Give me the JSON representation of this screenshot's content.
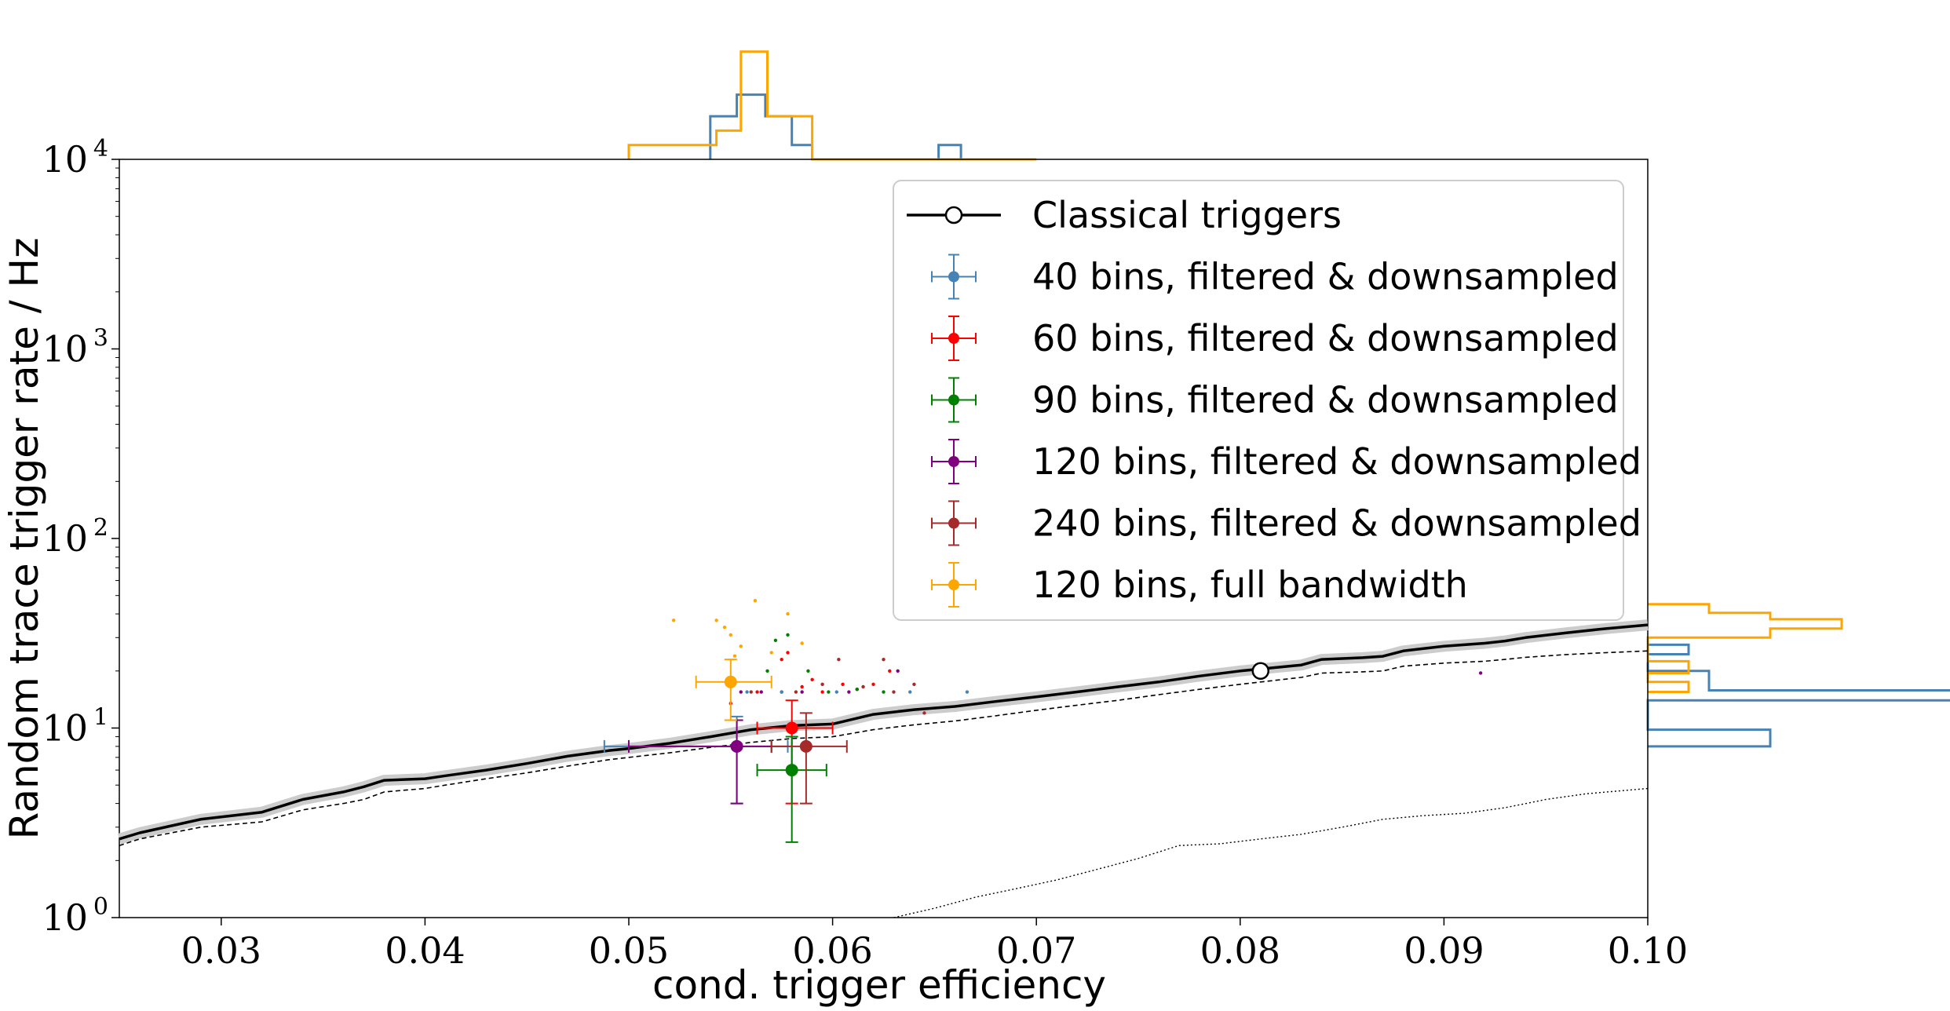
{
  "chart_data": {
    "type": "scatter",
    "title": "",
    "xlabel": "cond. trigger efficiency",
    "ylabel": "Random trace trigger rate / Hz",
    "xlim": [
      0.025,
      0.1
    ],
    "ylim": [
      1,
      10000
    ],
    "yscale": "log",
    "xticks": [
      0.03,
      0.04,
      0.05,
      0.06,
      0.07,
      0.08,
      0.09,
      0.1
    ],
    "xtick_labels": [
      "0.03",
      "0.04",
      "0.05",
      "0.06",
      "0.07",
      "0.08",
      "0.09",
      "0.10"
    ],
    "yticks": [
      1,
      10,
      100,
      1000,
      10000
    ],
    "ytick_base": "10",
    "ytick_exponents": [
      "0",
      "1",
      "2",
      "3",
      "4"
    ],
    "grid": false,
    "legend_position": "top-right",
    "colors": {
      "classical": "#000000",
      "bins40": "#4682b4",
      "bins60": "#ff0000",
      "bins90": "#008000",
      "bins120": "#800080",
      "bins240": "#a52a2a",
      "full": "#ffa500"
    },
    "classical_curve": {
      "name": "Classical triggers",
      "x": [
        0.025,
        0.026,
        0.029,
        0.032,
        0.034,
        0.036,
        0.037,
        0.038,
        0.04,
        0.041,
        0.043,
        0.045,
        0.047,
        0.049,
        0.05,
        0.052,
        0.054,
        0.056,
        0.058,
        0.06,
        0.062,
        0.064,
        0.066,
        0.068,
        0.07,
        0.072,
        0.074,
        0.076,
        0.078,
        0.08,
        0.082,
        0.083,
        0.084,
        0.086,
        0.087,
        0.088,
        0.09,
        0.092,
        0.093,
        0.094,
        0.096,
        0.098,
        0.1
      ],
      "y": [
        2.6,
        2.8,
        3.3,
        3.6,
        4.2,
        4.6,
        4.9,
        5.3,
        5.4,
        5.6,
        6.0,
        6.5,
        7.1,
        7.6,
        7.8,
        8.3,
        9.0,
        9.8,
        10.3,
        10.5,
        11.8,
        12.5,
        13.0,
        13.8,
        14.6,
        15.5,
        16.5,
        17.5,
        18.8,
        20.0,
        21.0,
        21.5,
        23.0,
        23.5,
        23.9,
        25.5,
        27.0,
        28.0,
        28.8,
        30.0,
        31.8,
        33.5,
        35.0
      ],
      "marker": {
        "x": 0.081,
        "y": 20.0
      }
    },
    "dashed_curve": {
      "x": [
        0.025,
        0.026,
        0.029,
        0.032,
        0.034,
        0.036,
        0.037,
        0.038,
        0.04,
        0.041,
        0.043,
        0.045,
        0.047,
        0.049,
        0.05,
        0.052,
        0.054,
        0.056,
        0.058,
        0.06,
        0.062,
        0.064,
        0.066,
        0.068,
        0.07,
        0.072,
        0.074,
        0.076,
        0.078,
        0.08,
        0.082,
        0.083,
        0.084,
        0.086,
        0.087,
        0.088,
        0.09,
        0.092,
        0.093,
        0.094,
        0.096,
        0.098,
        0.1
      ],
      "y": [
        2.4,
        2.6,
        3.0,
        3.2,
        3.7,
        4.0,
        4.2,
        4.6,
        4.8,
        5.0,
        5.4,
        5.8,
        6.3,
        6.8,
        7.0,
        7.4,
        7.9,
        8.4,
        8.8,
        9.0,
        9.8,
        10.4,
        10.9,
        11.6,
        12.4,
        13.2,
        14.0,
        15.0,
        16.0,
        17.0,
        18.0,
        18.5,
        19.5,
        19.8,
        20.0,
        21.2,
        22.0,
        22.5,
        23.0,
        23.6,
        24.4,
        25.0,
        25.5
      ]
    },
    "dotted_curve": {
      "x": [
        0.063,
        0.065,
        0.067,
        0.069,
        0.071,
        0.073,
        0.075,
        0.077,
        0.079,
        0.081,
        0.083,
        0.085,
        0.087,
        0.089,
        0.091,
        0.093,
        0.095,
        0.097,
        0.1
      ],
      "y": [
        1.0,
        1.12,
        1.28,
        1.42,
        1.58,
        1.8,
        2.05,
        2.4,
        2.45,
        2.6,
        2.75,
        3.0,
        3.3,
        3.45,
        3.55,
        3.8,
        4.2,
        4.5,
        4.8
      ]
    },
    "series": [
      {
        "key": "bins40",
        "name": "40 bins, filtered & downsampled",
        "x": 0.0553,
        "y": 8.0,
        "xerr": [
          0.0065,
          0.0025
        ],
        "yerr": [
          4.0,
          11.5
        ]
      },
      {
        "key": "bins60",
        "name": "60 bins, filtered & downsampled",
        "x": 0.058,
        "y": 10.0,
        "xerr": [
          0.0017,
          0.002
        ],
        "yerr": [
          4.0,
          14.0
        ]
      },
      {
        "key": "bins90",
        "name": "90 bins, filtered & downsampled",
        "x": 0.058,
        "y": 6.0,
        "xerr": [
          0.0017,
          0.0017
        ],
        "yerr": [
          2.5,
          9.0
        ]
      },
      {
        "key": "bins120",
        "name": "120 bins, filtered & downsampled",
        "x": 0.0553,
        "y": 8.0,
        "xerr": [
          0.0053,
          0.0017
        ],
        "yerr": [
          4.0,
          11.0
        ]
      },
      {
        "key": "bins240",
        "name": "240 bins, filtered & downsampled",
        "x": 0.0587,
        "y": 8.0,
        "xerr": [
          0.0017,
          0.002
        ],
        "yerr": [
          4.0,
          12.0
        ]
      },
      {
        "key": "full",
        "name": "120 bins, full bandwidth",
        "x": 0.055,
        "y": 17.5,
        "xerr": [
          0.0017,
          0.002
        ],
        "yerr": [
          11.0,
          23.0
        ]
      }
    ],
    "scatter_points": [
      {
        "key": "full",
        "points": [
          [
            0.0522,
            37
          ],
          [
            0.0543,
            37
          ],
          [
            0.0547,
            34
          ],
          [
            0.055,
            31
          ],
          [
            0.0555,
            27
          ],
          [
            0.0562,
            47
          ],
          [
            0.057,
            25
          ],
          [
            0.0578,
            40
          ],
          [
            0.0585,
            28
          ],
          [
            0.0552,
            24
          ]
        ]
      },
      {
        "key": "bins60",
        "points": [
          [
            0.0563,
            15.5
          ],
          [
            0.0575,
            23
          ],
          [
            0.0585,
            16.5
          ],
          [
            0.059,
            18
          ],
          [
            0.0595,
            15.5
          ],
          [
            0.0605,
            17
          ],
          [
            0.0612,
            16
          ],
          [
            0.062,
            17
          ],
          [
            0.0628,
            20
          ],
          [
            0.0578,
            25
          ],
          [
            0.055,
            13.5
          ]
        ]
      },
      {
        "key": "bins90",
        "points": [
          [
            0.0568,
            20
          ],
          [
            0.0572,
            29
          ],
          [
            0.0578,
            31
          ],
          [
            0.0588,
            20
          ],
          [
            0.0598,
            15.5
          ],
          [
            0.0612,
            16
          ],
          [
            0.0625,
            15.5
          ]
        ]
      },
      {
        "key": "bins240",
        "points": [
          [
            0.056,
            15.5
          ],
          [
            0.0575,
            15.5
          ],
          [
            0.0582,
            15.5
          ],
          [
            0.0595,
            17
          ],
          [
            0.0603,
            23
          ],
          [
            0.0615,
            16.5
          ],
          [
            0.0625,
            23
          ],
          [
            0.063,
            15.5
          ],
          [
            0.064,
            17
          ],
          [
            0.0645,
            12
          ]
        ]
      },
      {
        "key": "bins120",
        "points": [
          [
            0.0555,
            15.5
          ],
          [
            0.0565,
            15.5
          ],
          [
            0.0585,
            15.5
          ],
          [
            0.0608,
            15.5
          ],
          [
            0.0632,
            20
          ],
          [
            0.0918,
            19.5
          ]
        ]
      },
      {
        "key": "bins40",
        "points": [
          [
            0.0558,
            15.5
          ],
          [
            0.0575,
            15.5
          ],
          [
            0.0602,
            15.5
          ],
          [
            0.0638,
            15.5
          ],
          [
            0.0666,
            15.5
          ]
        ]
      }
    ],
    "histogram_top": {
      "steelblue": {
        "edges": [
          0.054,
          0.0553,
          0.0567,
          0.058,
          0.059,
          0.0652,
          0.0663
        ],
        "heights": [
          0.3,
          0.45,
          0.3,
          0.1,
          0.0,
          0.1
        ]
      },
      "orange": {
        "edges": [
          0.05,
          0.0543,
          0.0555,
          0.0568,
          0.059,
          0.07
        ],
        "heights": [
          0.1,
          0.2,
          0.75,
          0.3,
          0.0
        ]
      }
    },
    "histogram_right": {
      "steelblue": {
        "levels": [
          8.0,
          9.8,
          14.0,
          15.8,
          20.0,
          24.5,
          27.5
        ],
        "counts": [
          0.6,
          0.0,
          1.5,
          0.3,
          0.0,
          0.2
        ]
      },
      "orange": {
        "levels": [
          15.5,
          17.5,
          19.5,
          22.5,
          30.0,
          33.5,
          37.5,
          40.5,
          45.0
        ],
        "counts": [
          0.2,
          0.0,
          0.2,
          0.0,
          0.6,
          0.95,
          0.6,
          0.3
        ]
      }
    }
  }
}
